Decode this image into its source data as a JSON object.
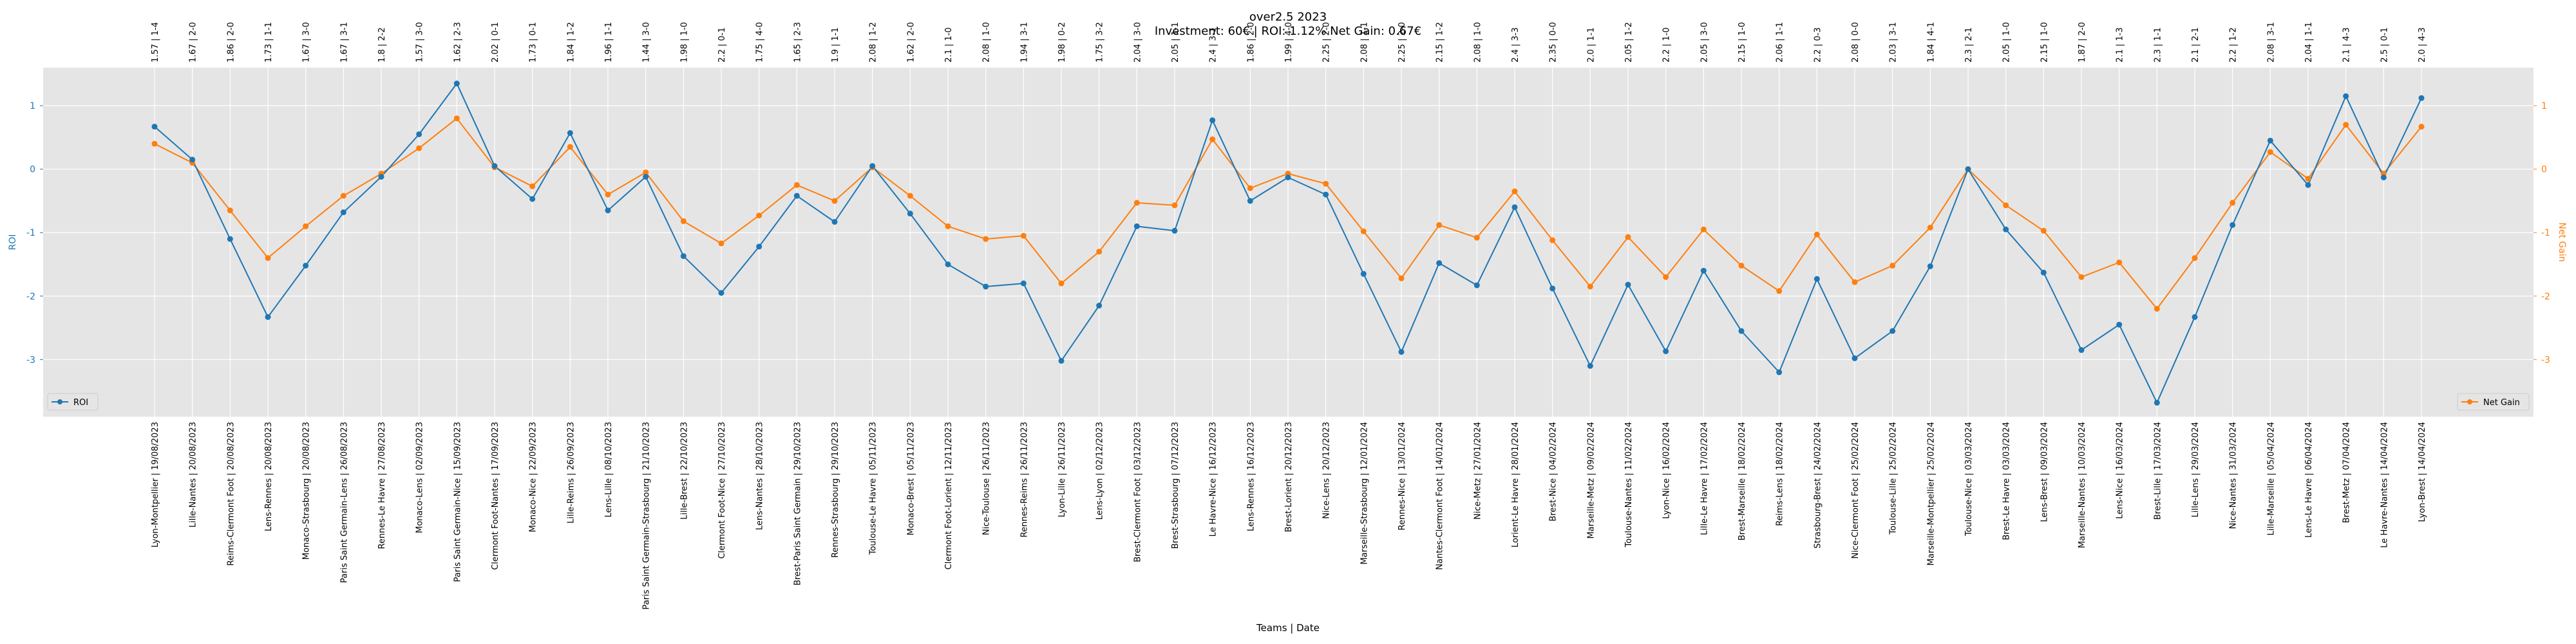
{
  "chart_data": {
    "type": "line",
    "title": "over2.5 2023",
    "subtitle": "Investment: 60€ | ROI: 1.12% Net Gain: 0.67€",
    "xlabel": "Teams | Date",
    "ylabel_left": "ROI",
    "ylabel_right": "Net Gain",
    "grid": true,
    "legend_left": "lower-left",
    "legend_right": "lower-right",
    "yticks": [
      1,
      0,
      -1,
      -2,
      -3
    ],
    "ylim": [
      -3.9,
      1.6
    ],
    "colors": {
      "roi": "#1f77b4",
      "net_gain": "#ff7f0e",
      "plot_bg": "#e5e5e5",
      "grid": "#ffffff"
    },
    "categories": [
      "Lyon-Montpellier | 19/08/2023",
      "Lille-Nantes | 20/08/2023",
      "Reims-Clermont Foot | 20/08/2023",
      "Lens-Rennes | 20/08/2023",
      "Monaco-Strasbourg | 20/08/2023",
      "Paris Saint Germain-Lens | 26/08/2023",
      "Rennes-Le Havre | 27/08/2023",
      "Monaco-Lens | 02/09/2023",
      "Paris Saint Germain-Nice | 15/09/2023",
      "Clermont Foot-Nantes | 17/09/2023",
      "Monaco-Nice | 22/09/2023",
      "Lille-Reims | 26/09/2023",
      "Lens-Lille | 08/10/2023",
      "Paris Saint Germain-Strasbourg | 21/10/2023",
      "Lille-Brest | 22/10/2023",
      "Clermont Foot-Nice | 27/10/2023",
      "Lens-Nantes | 28/10/2023",
      "Brest-Paris Saint Germain | 29/10/2023",
      "Rennes-Strasbourg | 29/10/2023",
      "Toulouse-Le Havre | 05/11/2023",
      "Monaco-Brest | 05/11/2023",
      "Clermont Foot-Lorient | 12/11/2023",
      "Nice-Toulouse | 26/11/2023",
      "Rennes-Reims | 26/11/2023",
      "Lyon-Lille | 26/11/2023",
      "Lens-Lyon | 02/12/2023",
      "Brest-Clermont Foot | 03/12/2023",
      "Brest-Strasbourg | 07/12/2023",
      "Le Havre-Nice | 16/12/2023",
      "Lens-Rennes | 16/12/2023",
      "Brest-Lorient | 20/12/2023",
      "Nice-Lens | 20/12/2023",
      "Marseille-Strasbourg | 12/01/2024",
      "Rennes-Nice | 13/01/2024",
      "Nantes-Clermont Foot | 14/01/2024",
      "Nice-Metz | 27/01/2024",
      "Lorient-Le Havre | 28/01/2024",
      "Brest-Nice | 04/02/2024",
      "Marseille-Metz | 09/02/2024",
      "Toulouse-Nantes | 11/02/2024",
      "Lyon-Nice | 16/02/2024",
      "Lille-Le Havre | 17/02/2024",
      "Brest-Marseille | 18/02/2024",
      "Reims-Lens | 18/02/2024",
      "Strasbourg-Brest | 24/02/2024",
      "Nice-Clermont Foot | 25/02/2024",
      "Toulouse-Lille | 25/02/2024",
      "Marseille-Montpellier | 25/02/2024",
      "Toulouse-Nice | 03/03/2024",
      "Brest-Le Havre | 03/03/2024",
      "Lens-Brest | 09/03/2024",
      "Marseille-Nantes | 10/03/2024",
      "Lens-Nice | 16/03/2024",
      "Brest-Lille | 17/03/2024",
      "Lille-Lens | 29/03/2024",
      "Nice-Nantes | 31/03/2024",
      "Lille-Marseille | 05/04/2024",
      "Lens-Le Havre | 06/04/2024",
      "Brest-Metz | 07/04/2024",
      "Le Havre-Nantes | 14/04/2024",
      "Lyon-Brest | 14/04/2024"
    ],
    "top_labels": [
      "1.57 | 1-4",
      "1.67 | 2-0",
      "1.86 | 2-0",
      "1.73 | 1-1",
      "1.67 | 3-0",
      "1.67 | 3-1",
      "1.8 | 2-2",
      "1.57 | 3-0",
      "1.62 | 2-3",
      "2.02 | 0-1",
      "1.73 | 0-1",
      "1.84 | 1-2",
      "1.96 | 1-1",
      "1.44 | 3-0",
      "1.98 | 1-0",
      "2.2 | 0-1",
      "1.75 | 4-0",
      "1.65 | 2-3",
      "1.9 | 1-1",
      "2.08 | 1-2",
      "1.62 | 2-0",
      "2.1 | 1-0",
      "2.08 | 1-0",
      "1.94 | 3-1",
      "1.98 | 0-2",
      "1.75 | 3-2",
      "2.04 | 3-0",
      "2.05 | 1-1",
      "2.4 | 3-1",
      "1.86 | 2-0",
      "1.99 | 4-0",
      "2.25 | 2-0",
      "2.08 | 1-1",
      "2.25 | 2-0",
      "2.15 | 1-2",
      "2.08 | 1-0",
      "2.4 | 3-3",
      "2.35 | 0-0",
      "2.0 | 1-1",
      "2.05 | 1-2",
      "2.2 | 1-0",
      "2.05 | 3-0",
      "2.15 | 1-0",
      "2.06 | 1-1",
      "2.2 | 0-3",
      "2.08 | 0-0",
      "2.03 | 3-1",
      "1.84 | 4-1",
      "2.3 | 2-1",
      "2.05 | 1-0",
      "2.15 | 1-0",
      "1.87 | 2-0",
      "2.1 | 1-3",
      "2.3 | 1-1",
      "2.1 | 2-1",
      "2.2 | 1-2",
      "2.08 | 3-1",
      "2.04 | 1-1",
      "2.1 | 4-3",
      "2.5 | 0-1",
      "2.0 | 4-3"
    ],
    "series": [
      {
        "name": "ROI",
        "axis": "left",
        "values": [
          0.67,
          0.15,
          -1.1,
          -2.33,
          -1.52,
          -0.68,
          -0.12,
          0.55,
          1.35,
          0.05,
          -0.47,
          0.57,
          -0.65,
          -0.12,
          -1.37,
          -1.95,
          -1.22,
          -0.42,
          -0.83,
          0.05,
          -0.7,
          -1.5,
          -1.85,
          -1.8,
          -3.02,
          -2.15,
          -0.9,
          -0.97,
          0.77,
          -0.5,
          -0.13,
          -0.4,
          -1.65,
          -2.88,
          -1.48,
          -1.83,
          -0.6,
          -1.88,
          -3.1,
          -1.82,
          -2.87,
          -1.6,
          -2.55,
          -3.2,
          -1.73,
          -2.98,
          -2.55,
          -1.53,
          0.0,
          -0.95,
          -1.63,
          -2.85,
          -2.45,
          -3.68,
          -2.33,
          -0.88,
          0.45,
          -0.25,
          1.15,
          -0.13,
          1.12
        ]
      },
      {
        "name": "Net Gain",
        "axis": "right",
        "values": [
          0.4,
          0.1,
          -0.65,
          -1.4,
          -0.9,
          -0.42,
          -0.07,
          0.33,
          0.8,
          0.03,
          -0.27,
          0.35,
          -0.4,
          -0.05,
          -0.82,
          -1.17,
          -0.73,
          -0.25,
          -0.5,
          0.03,
          -0.42,
          -0.9,
          -1.1,
          -1.05,
          -1.8,
          -1.3,
          -0.53,
          -0.57,
          0.47,
          -0.3,
          -0.07,
          -0.23,
          -0.98,
          -1.72,
          -0.88,
          -1.08,
          -0.35,
          -1.12,
          -1.85,
          -1.07,
          -1.7,
          -0.95,
          -1.52,
          -1.92,
          -1.03,
          -1.78,
          -1.52,
          -0.92,
          0.0,
          -0.57,
          -0.97,
          -1.7,
          -1.47,
          -2.2,
          -1.4,
          -0.53,
          0.27,
          -0.15,
          0.7,
          -0.07,
          0.67
        ]
      }
    ]
  }
}
